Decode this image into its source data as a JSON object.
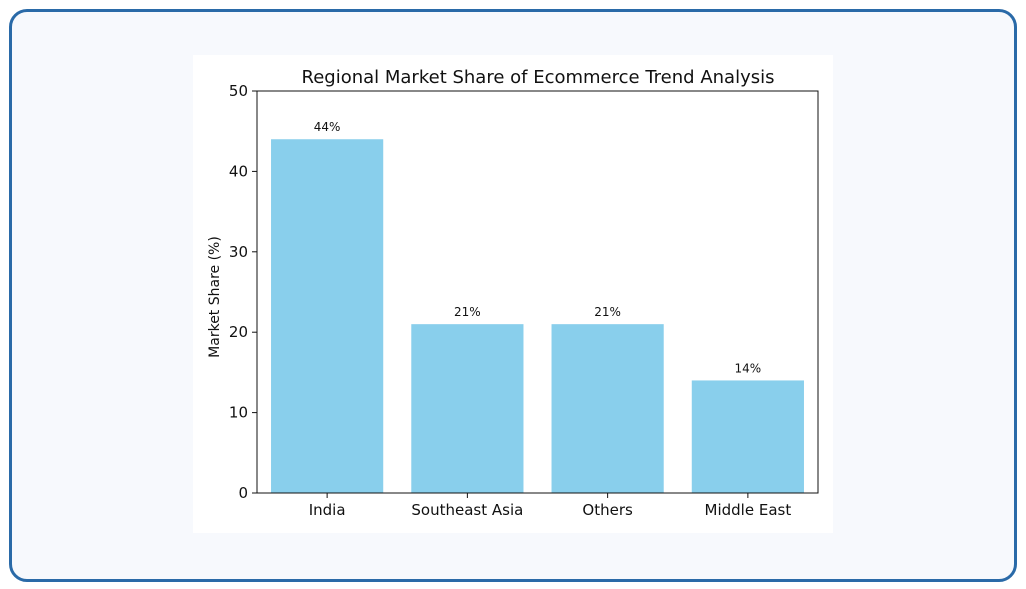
{
  "chart_data": {
    "type": "bar",
    "title": "Regional Market Share of Ecommerce Trend Analysis",
    "xlabel": "",
    "ylabel": "Market Share (%)",
    "categories": [
      "India",
      "Southeast Asia",
      "Others",
      "Middle East"
    ],
    "values": [
      44,
      21,
      21,
      14
    ],
    "value_labels": [
      "44%",
      "21%",
      "21%",
      "14%"
    ],
    "ylim": [
      0,
      50
    ],
    "yticks": [
      0,
      10,
      20,
      30,
      40,
      50
    ],
    "grid": false,
    "legend": "none",
    "bar_color": "#89cfec"
  },
  "colors": {
    "frame_border": "#2a6aa8",
    "frame_background": "#f7f9fd"
  }
}
